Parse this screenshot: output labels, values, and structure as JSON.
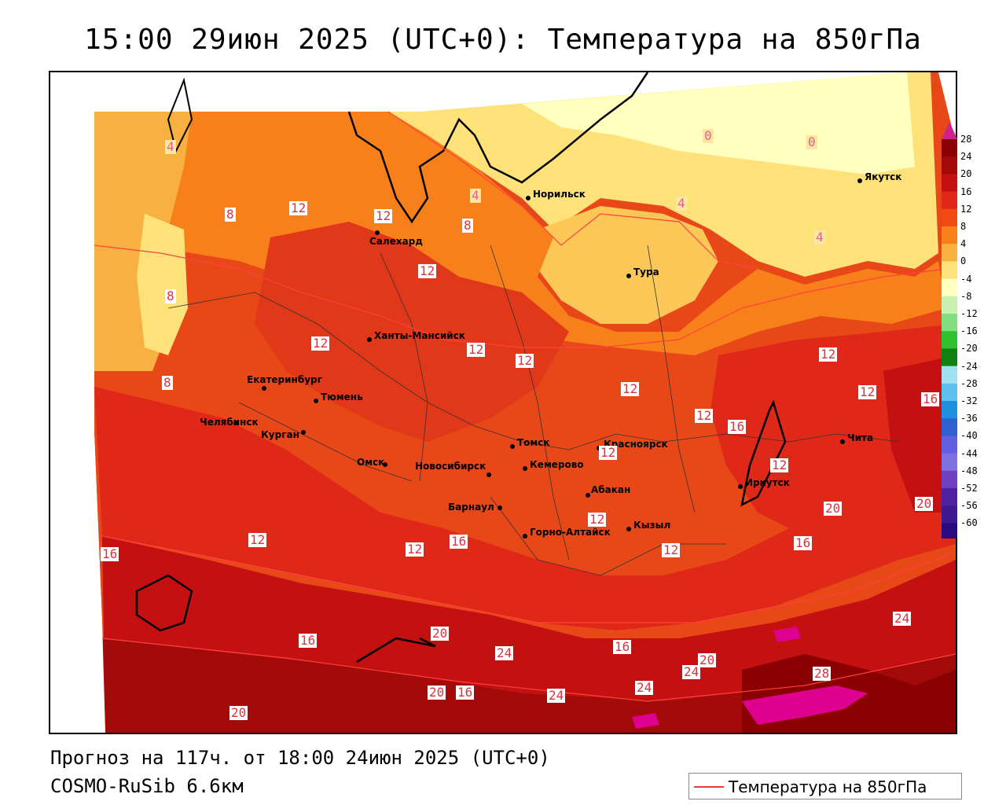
{
  "title": "15:00 29июн 2025 (UTC+0): Температура на 850гПа",
  "footer": {
    "forecast": "Прогноз на 117ч. от 18:00 24июн 2025 (UTC+0)",
    "model": "COSMO-RuSib 6.6км"
  },
  "legend": {
    "label": "Температура на 850гПа",
    "line_color": "#e83a3a"
  },
  "colorbar": {
    "labels": [
      "28",
      "24",
      "20",
      "16",
      "12",
      "8",
      "4",
      "0",
      "-4",
      "-8",
      "-12",
      "-16",
      "-20",
      "-24",
      "-28",
      "-32",
      "-36",
      "-40",
      "-44",
      "-48",
      "-52",
      "-56",
      "-60"
    ],
    "colors": [
      "#8b0000",
      "#a30a0a",
      "#c41010",
      "#e02818",
      "#f04a10",
      "#f8801a",
      "#f8b040",
      "#fde27a",
      "#ffffc0",
      "#c8f0b0",
      "#80e080",
      "#30c030",
      "#108010",
      "#a0e0f0",
      "#60c0f0",
      "#2090e0",
      "#3060d0",
      "#6060e0",
      "#8070e0",
      "#7040c0",
      "#5020a0",
      "#401890",
      "#2a0a80"
    ]
  },
  "cities": [
    {
      "name": "Норильск"
    },
    {
      "name": "Якутск"
    },
    {
      "name": "Салехард"
    },
    {
      "name": "Тура"
    },
    {
      "name": "Ханты-Мансийск"
    },
    {
      "name": "Екатеринбург"
    },
    {
      "name": "Тюмень"
    },
    {
      "name": "Челябинск"
    },
    {
      "name": "Курган"
    },
    {
      "name": "Омск"
    },
    {
      "name": "Новосибирск"
    },
    {
      "name": "Томск"
    },
    {
      "name": "Кемерово"
    },
    {
      "name": "Красноярск"
    },
    {
      "name": "Барнаул"
    },
    {
      "name": "Абакан"
    },
    {
      "name": "Горно-Алтайск"
    },
    {
      "name": "Кызыл"
    },
    {
      "name": "Иркутск"
    },
    {
      "name": "Чита"
    }
  ],
  "contour_labels": [
    "4",
    "4",
    "8",
    "8",
    "12",
    "12",
    "12",
    "12",
    "12",
    "12",
    "12",
    "12",
    "12",
    "12",
    "0",
    "0",
    "4",
    "4",
    "8",
    "8",
    "12",
    "12",
    "16",
    "16",
    "16",
    "16",
    "20",
    "20",
    "20",
    "20",
    "24",
    "24",
    "24",
    "24",
    "28",
    "20",
    "16",
    "16",
    "12",
    "12",
    "12",
    "12",
    "16",
    "20",
    "16",
    "24"
  ]
}
